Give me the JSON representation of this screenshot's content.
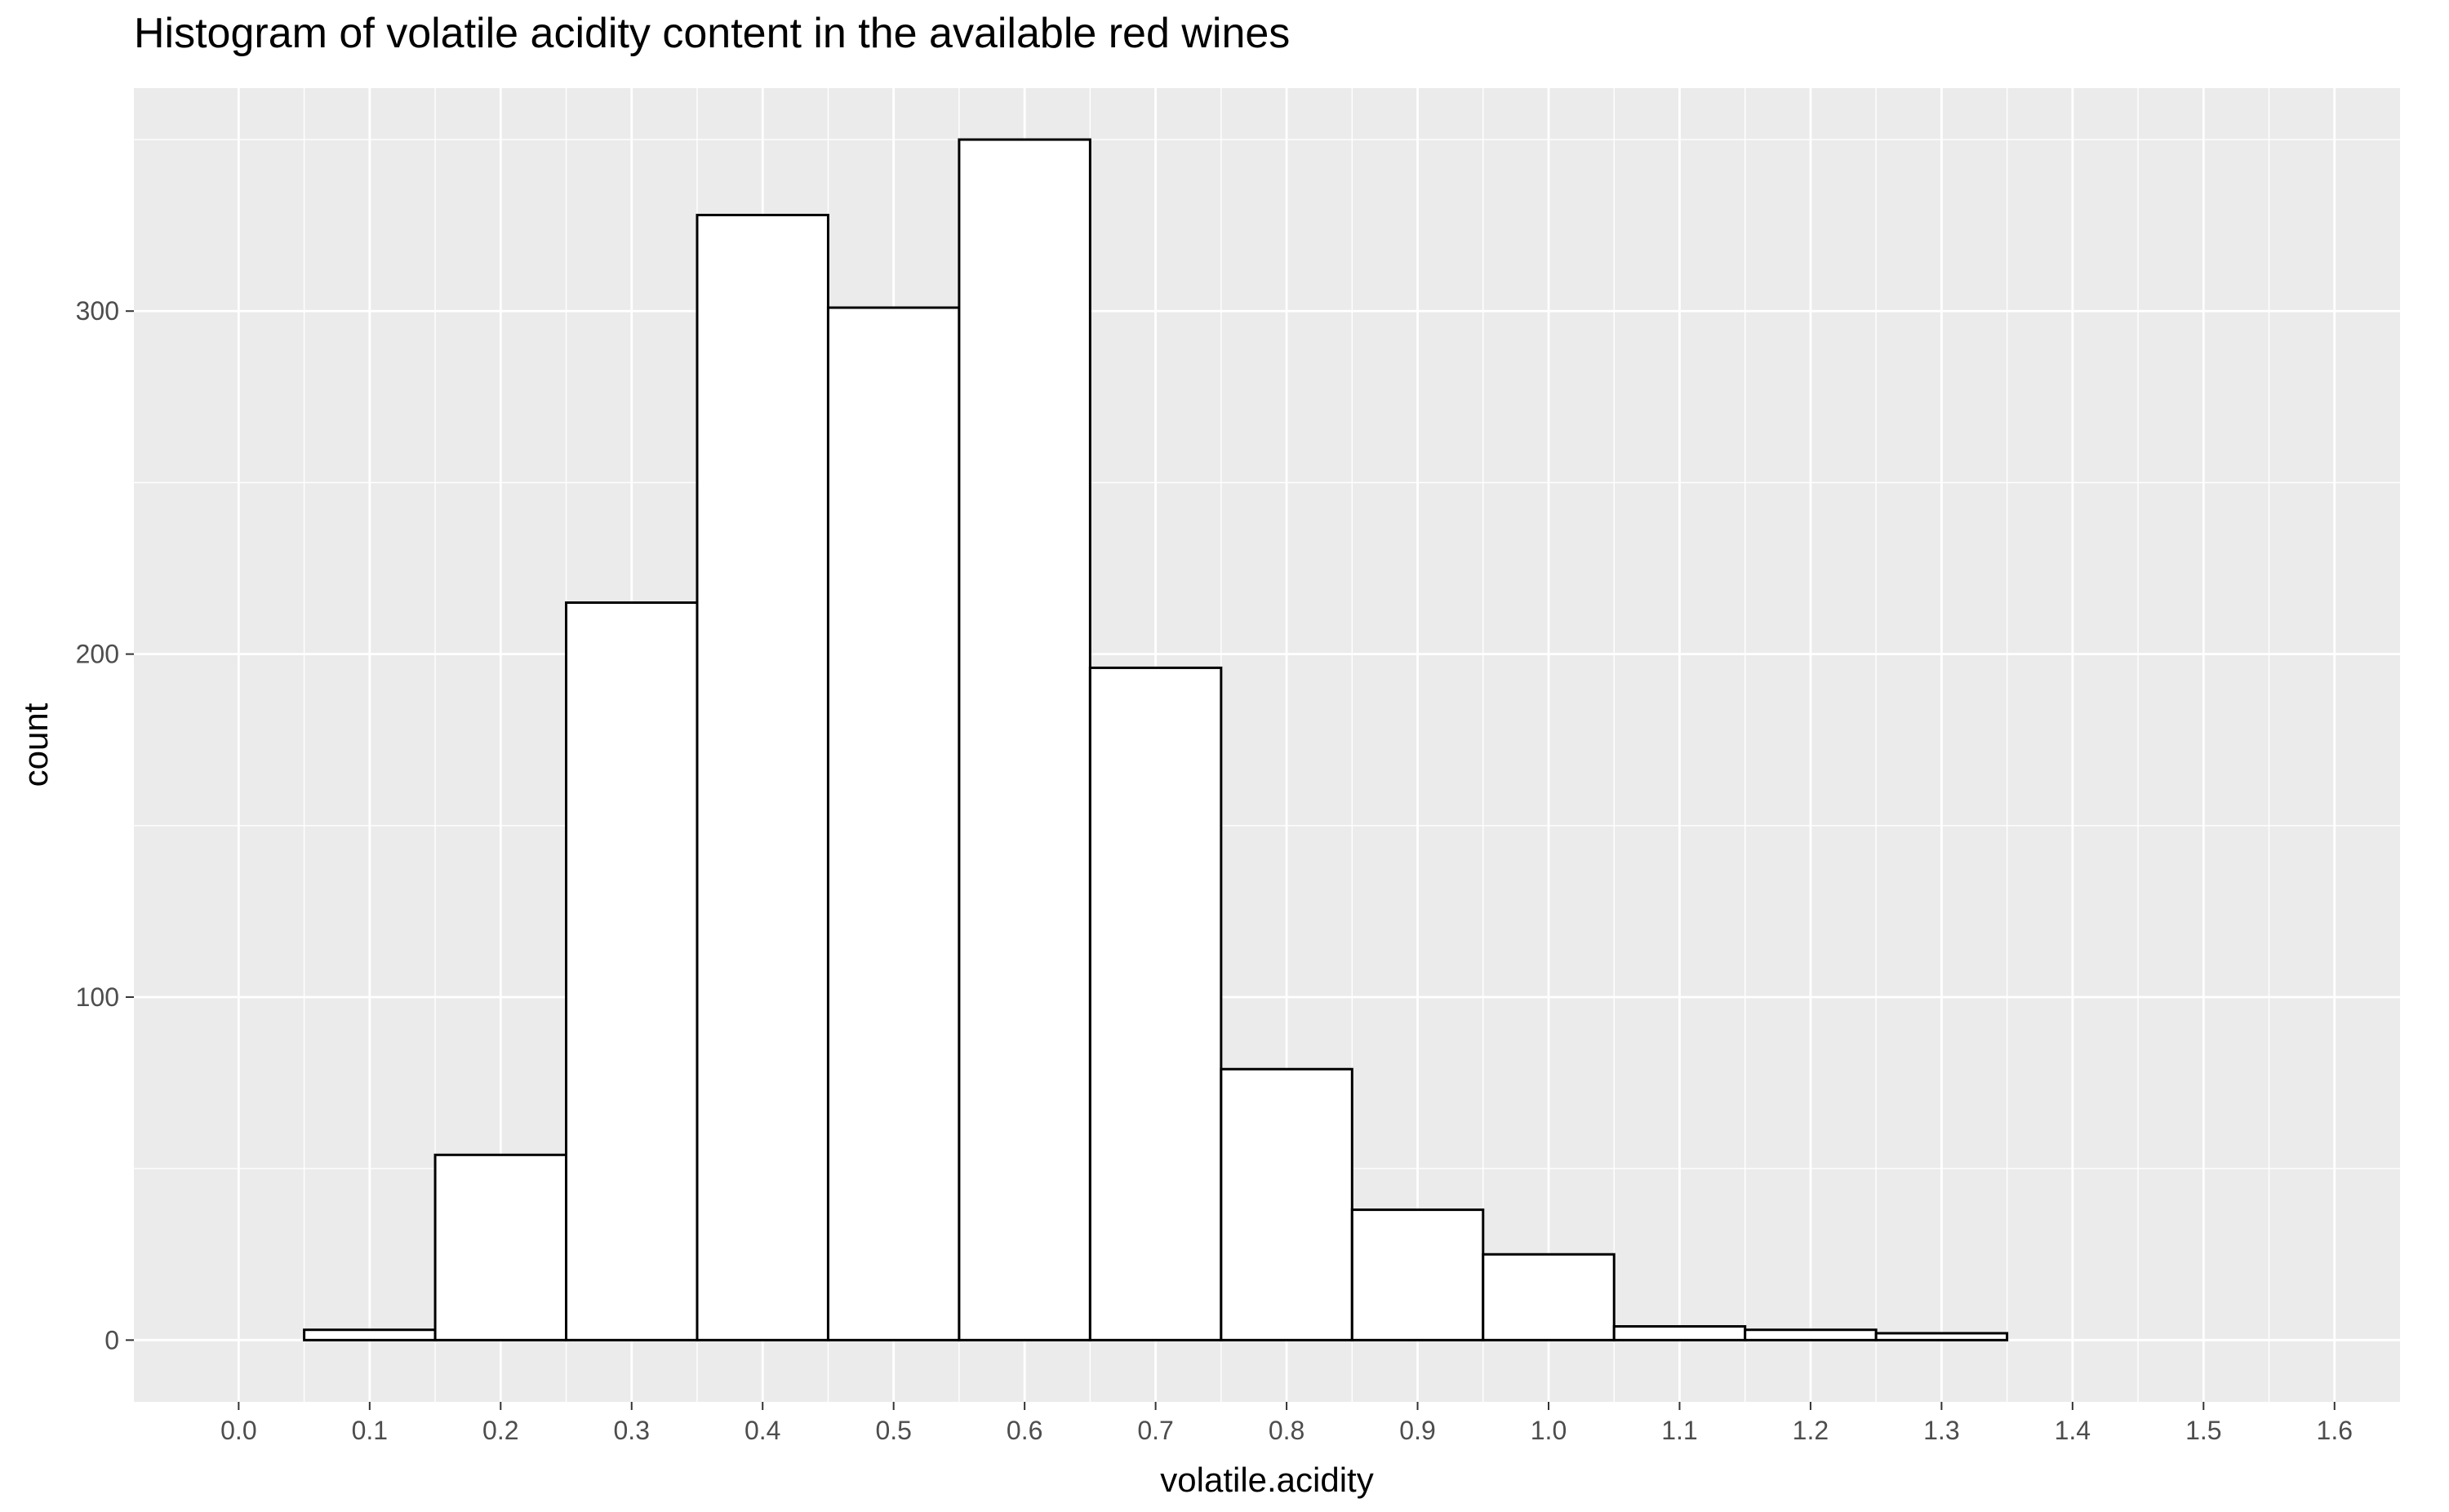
{
  "chart_data": {
    "type": "bar",
    "title": "Histogram of volatile acidity content in the available red wines",
    "xlabel": "volatile.acidity",
    "ylabel": "count",
    "xlim": [
      -0.08,
      1.65
    ],
    "ylim": [
      -18,
      365
    ],
    "x_ticks": [
      0.0,
      0.1,
      0.2,
      0.3,
      0.4,
      0.5,
      0.6,
      0.7,
      0.8,
      0.9,
      1.0,
      1.1,
      1.2,
      1.3,
      1.4,
      1.5,
      1.6
    ],
    "x_tick_labels": [
      "0.0",
      "0.1",
      "0.2",
      "0.3",
      "0.4",
      "0.5",
      "0.6",
      "0.7",
      "0.8",
      "0.9",
      "1.0",
      "1.1",
      "1.2",
      "1.3",
      "1.4",
      "1.5",
      "1.6"
    ],
    "y_ticks": [
      0,
      100,
      200,
      300
    ],
    "y_tick_labels": [
      "0",
      "100",
      "200",
      "300"
    ],
    "bin_width": 0.1,
    "bins": [
      {
        "center": 0.1,
        "count": 3
      },
      {
        "center": 0.2,
        "count": 54
      },
      {
        "center": 0.3,
        "count": 215
      },
      {
        "center": 0.4,
        "count": 328
      },
      {
        "center": 0.5,
        "count": 301
      },
      {
        "center": 0.6,
        "count": 350
      },
      {
        "center": 0.7,
        "count": 196
      },
      {
        "center": 0.8,
        "count": 79
      },
      {
        "center": 0.9,
        "count": 38
      },
      {
        "center": 1.0,
        "count": 25
      },
      {
        "center": 1.1,
        "count": 4
      },
      {
        "center": 1.2,
        "count": 3
      },
      {
        "center": 1.3,
        "count": 2
      },
      {
        "center": 1.4,
        "count": 0
      },
      {
        "center": 1.5,
        "count": 0
      }
    ],
    "grid": true,
    "colors": {
      "panel_background": "#ebebeb",
      "grid": "#ffffff",
      "bar_fill": "#ffffff",
      "bar_outline": "#000000",
      "tick_text": "#4d4d4d"
    }
  }
}
